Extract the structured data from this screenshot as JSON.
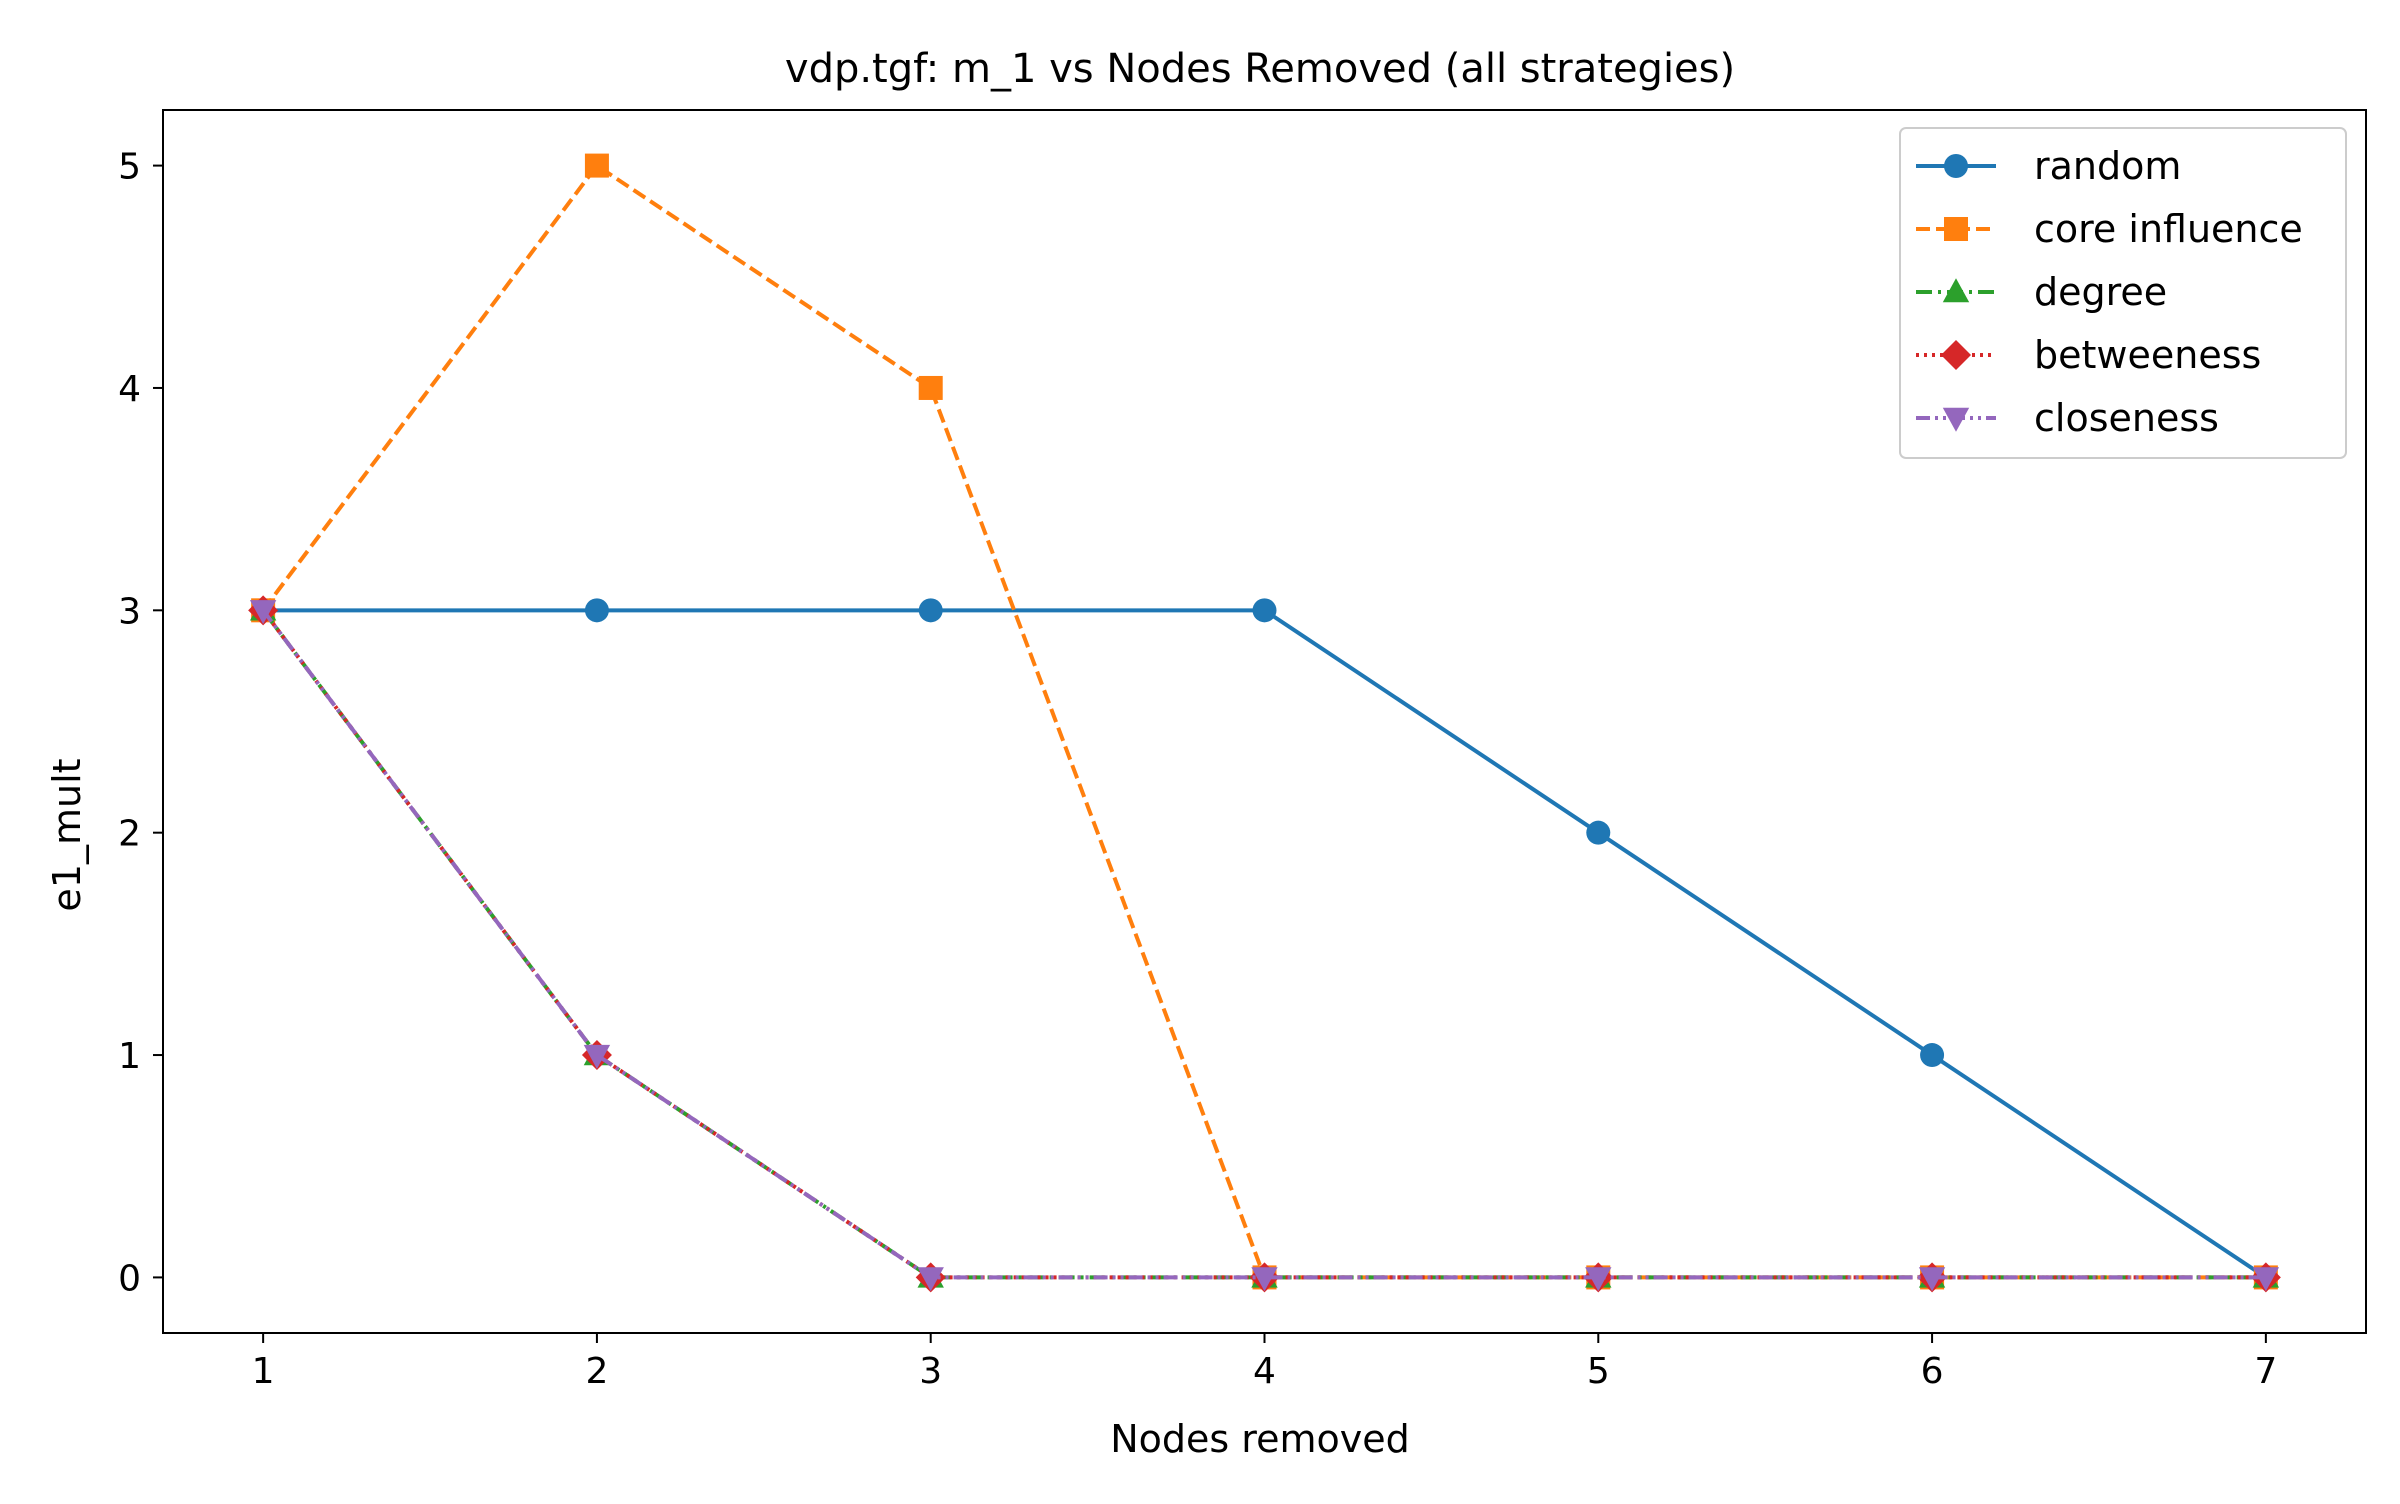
{
  "chart_data": {
    "type": "line",
    "title": "vdp.tgf: m_1 vs Nodes Removed (all strategies)",
    "xlabel": "Nodes removed",
    "ylabel": "e1_mult",
    "x": [
      1,
      2,
      3,
      4,
      5,
      6,
      7
    ],
    "xlim": [
      0.7,
      7.3
    ],
    "ylim": [
      -0.25,
      5.25
    ],
    "xticks": [
      1,
      2,
      3,
      4,
      5,
      6,
      7
    ],
    "yticks": [
      0,
      1,
      2,
      3,
      4,
      5
    ],
    "grid": false,
    "legend_position": "top-right",
    "series": [
      {
        "name": "random",
        "values": [
          3,
          3,
          3,
          3,
          2,
          1,
          0
        ],
        "color": "#1f77b4",
        "marker": "circle",
        "linestyle": "solid"
      },
      {
        "name": "core influence",
        "values": [
          3,
          5,
          4,
          0,
          0,
          0,
          0
        ],
        "color": "#ff7f0e",
        "marker": "square",
        "linestyle": "dashed"
      },
      {
        "name": "degree",
        "values": [
          3,
          1,
          0,
          0,
          0,
          0,
          0
        ],
        "color": "#2ca02c",
        "marker": "triangle-up",
        "linestyle": "dashdot"
      },
      {
        "name": "betweeness",
        "values": [
          3,
          1,
          0,
          0,
          0,
          0,
          0
        ],
        "color": "#d62728",
        "marker": "diamond",
        "linestyle": "dotted"
      },
      {
        "name": "closeness",
        "values": [
          3,
          1,
          0,
          0,
          0,
          0,
          0
        ],
        "color": "#9467bd",
        "marker": "triangle-down",
        "linestyle": "dashdotdot"
      }
    ]
  }
}
